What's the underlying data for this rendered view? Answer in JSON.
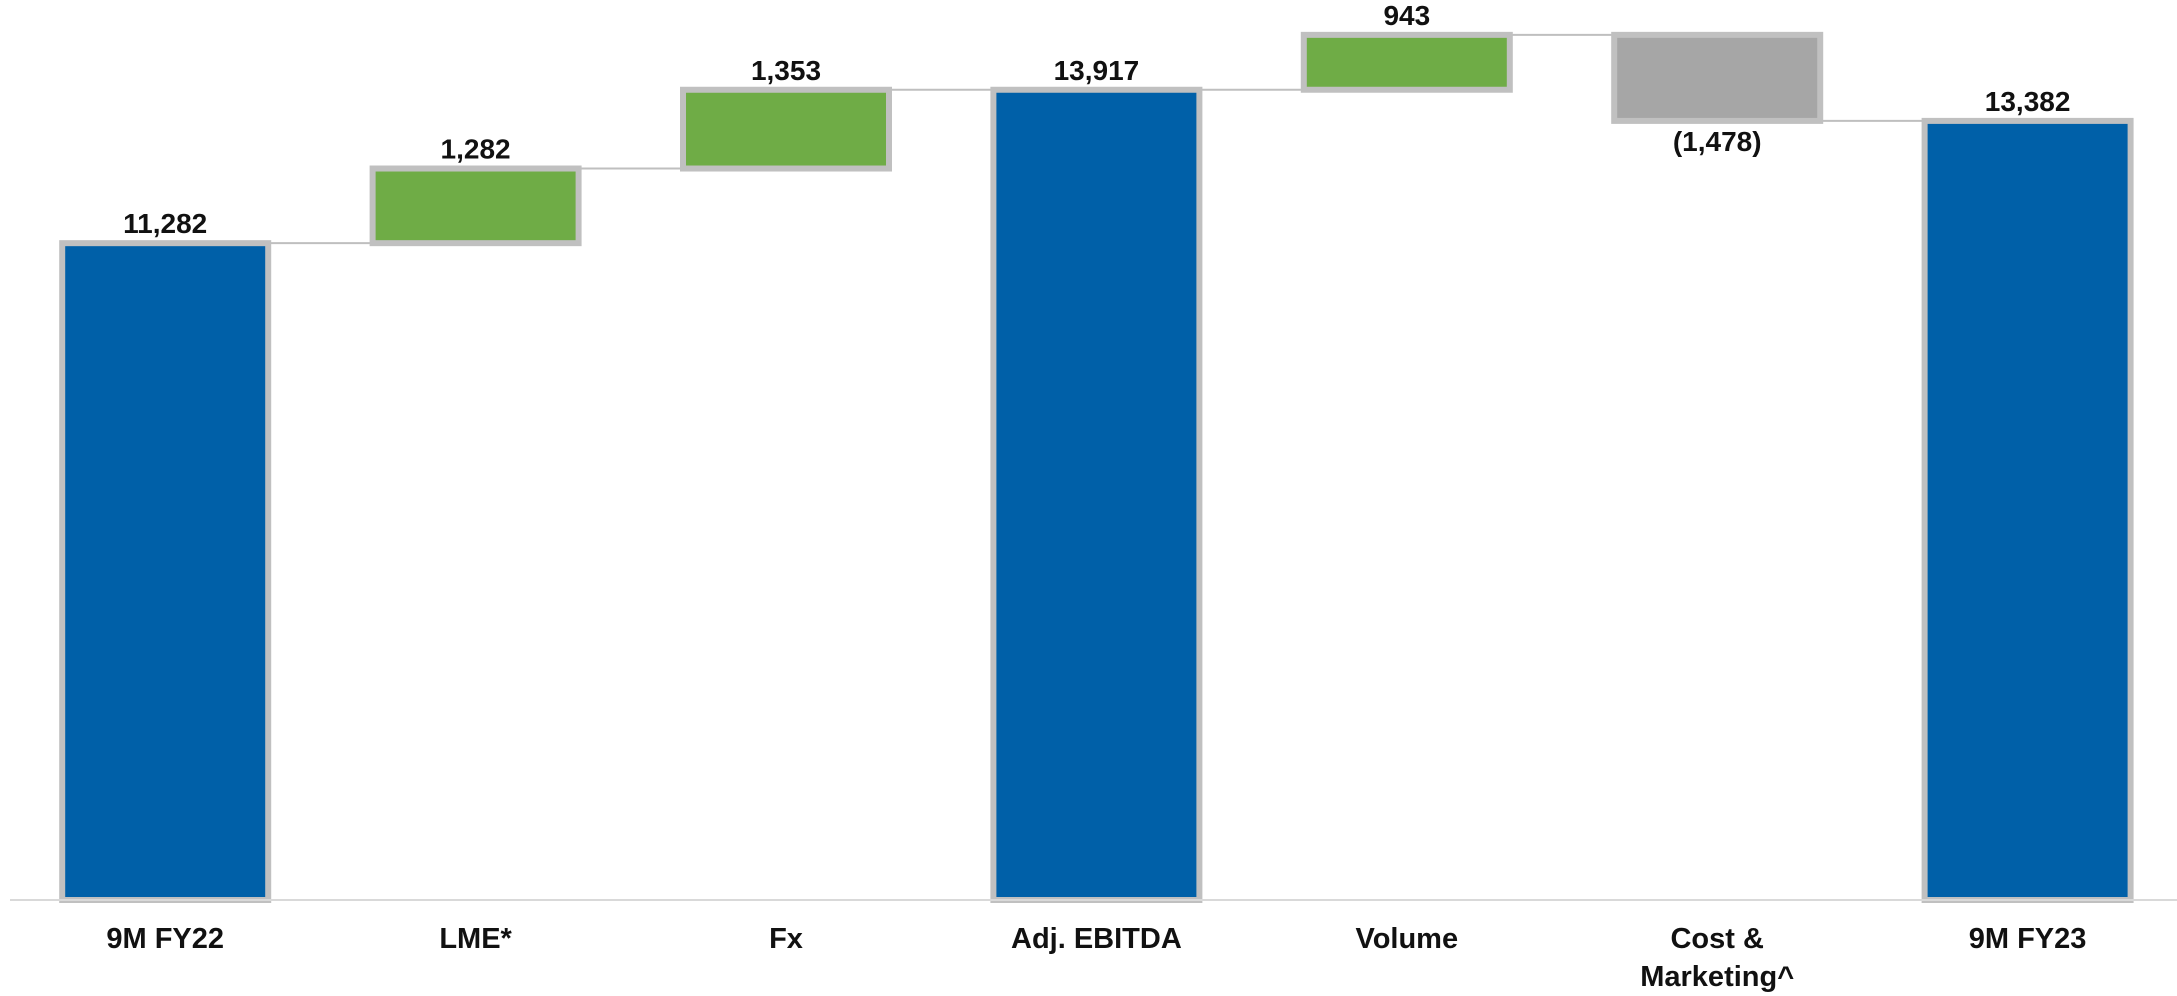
{
  "chart_data": {
    "type": "bar",
    "subtype": "waterfall",
    "categories": [
      "9M FY22",
      "LME*",
      "Fx",
      "Adj. EBITDA",
      "Volume",
      "Cost & Marketing^",
      "9M FY23"
    ],
    "category_label_lines": [
      [
        "9M FY22"
      ],
      [
        "LME*"
      ],
      [
        "Fx"
      ],
      [
        "Adj. EBITDA"
      ],
      [
        "Volume"
      ],
      [
        "Cost &",
        "Marketing^"
      ],
      [
        "9M FY23"
      ]
    ],
    "values": [
      11282,
      1282,
      1353,
      13917,
      943,
      -1478,
      13382
    ],
    "kinds": [
      "total",
      "delta",
      "delta",
      "total",
      "delta",
      "delta",
      "total"
    ],
    "data_labels": [
      "11,282",
      "1,282",
      "1,353",
      "13,917",
      "943",
      "(1,478)",
      "13,382"
    ],
    "ylim": [
      0,
      14860
    ],
    "grid": false,
    "legend": "none",
    "colors": {
      "total": "#0060A8",
      "increase": "#6FAC46",
      "decrease": "#A6A6A6",
      "bar_border": "#C0C0C0",
      "connector": "#BFBFBF",
      "axis": "#D9D9D9"
    }
  }
}
